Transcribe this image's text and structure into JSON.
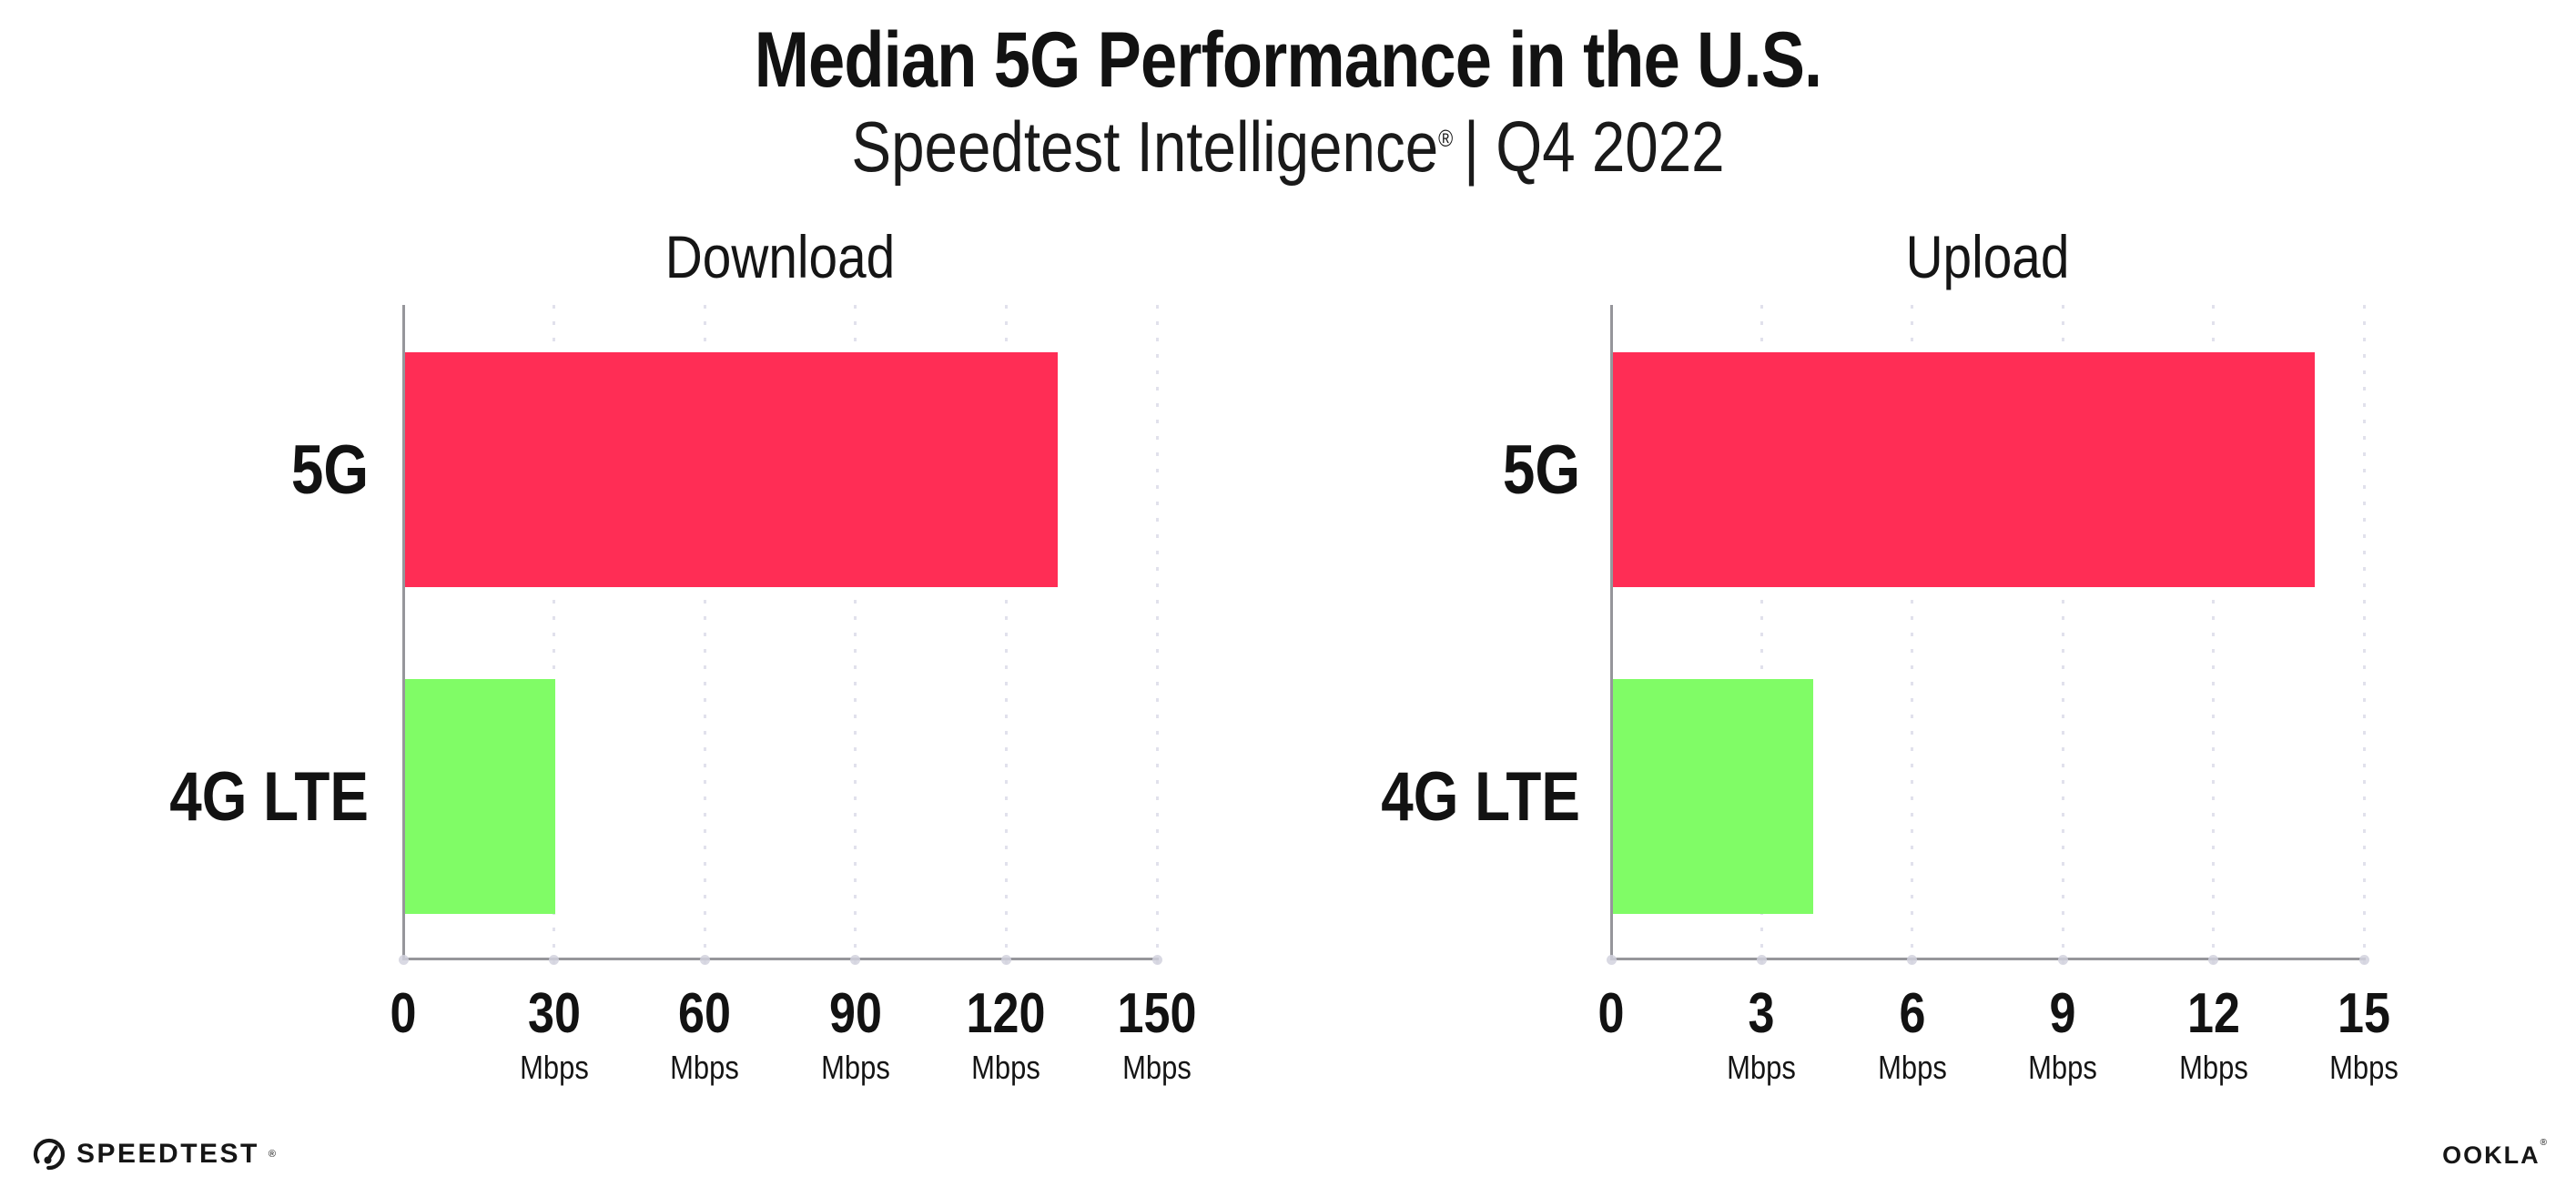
{
  "header": {
    "title": "Median 5G Performance in the U.S.",
    "subtitle_brand": "Speedtest Intelligence",
    "subtitle_reg": "®",
    "subtitle_rest": "| Q4 2022"
  },
  "footer": {
    "speedtest_label": "SPEEDTEST",
    "speedtest_reg": "®",
    "ookla_label": "OOKLA",
    "ookla_reg": "®"
  },
  "colors": {
    "bar_5g": "#ff2d55",
    "bar_4g_lte": "#80fc66",
    "axis": "#96969b",
    "gridline": "#e1e1ec",
    "tick_dot": "#d2d2de",
    "text": "#121212",
    "background": "#ffffff"
  },
  "chart_data": [
    {
      "type": "bar",
      "title": "Download",
      "orientation": "horizontal",
      "categories": [
        "5G",
        "4G LTE"
      ],
      "values": [
        130,
        30
      ],
      "unit": "Mbps",
      "xlim": [
        0,
        150
      ],
      "xticks": [
        0,
        30,
        60,
        90,
        120,
        150
      ],
      "tick_unit_label": "Mbps",
      "bar_colors": [
        "#ff2d55",
        "#80fc66"
      ],
      "grid": "dotted-vertical",
      "legend": "none"
    },
    {
      "type": "bar",
      "title": "Upload",
      "orientation": "horizontal",
      "categories": [
        "5G",
        "4G LTE"
      ],
      "values": [
        14,
        4
      ],
      "unit": "Mbps",
      "xlim": [
        0,
        15
      ],
      "xticks": [
        0,
        3,
        6,
        9,
        12,
        15
      ],
      "tick_unit_label": "Mbps",
      "bar_colors": [
        "#ff2d55",
        "#80fc66"
      ],
      "grid": "dotted-vertical",
      "legend": "none"
    }
  ]
}
